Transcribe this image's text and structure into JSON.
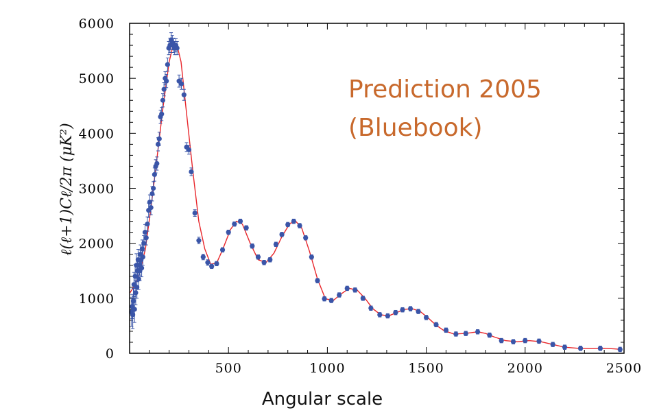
{
  "chart_data": {
    "type": "scatter",
    "title": "",
    "xlabel": "Angular scale",
    "ylabel": "ℓ(ℓ+1)Cℓ/2π (μK²)",
    "xlim": [
      0,
      2500
    ],
    "ylim": [
      0,
      6000
    ],
    "x_ticks": [
      500,
      1000,
      1500,
      2000,
      2500
    ],
    "y_ticks": [
      0,
      1000,
      2000,
      3000,
      4000,
      5000,
      6000
    ],
    "x_tick_labels": [
      "500",
      "1000",
      "1500",
      "2000",
      "2500"
    ],
    "y_tick_labels": [
      "0",
      "1000",
      "2000",
      "3000",
      "4000",
      "5000",
      "6000"
    ],
    "grid": false,
    "annotation_lines": [
      "Prediction 2005",
      "(Bluebook)"
    ],
    "colors": {
      "points": "#3a55a8",
      "curve": "#e8262b",
      "annotation": "#c8692c"
    },
    "series": [
      {
        "kind": "line",
        "points": [
          [
            2,
            1100
          ],
          [
            20,
            1200
          ],
          [
            50,
            1450
          ],
          [
            80,
            1900
          ],
          [
            110,
            2700
          ],
          [
            140,
            3600
          ],
          [
            170,
            4500
          ],
          [
            200,
            5300
          ],
          [
            220,
            5600
          ],
          [
            240,
            5600
          ],
          [
            260,
            5300
          ],
          [
            290,
            4300
          ],
          [
            320,
            3300
          ],
          [
            350,
            2400
          ],
          [
            380,
            1900
          ],
          [
            410,
            1620
          ],
          [
            440,
            1640
          ],
          [
            470,
            1880
          ],
          [
            510,
            2250
          ],
          [
            540,
            2400
          ],
          [
            570,
            2350
          ],
          [
            610,
            2000
          ],
          [
            650,
            1700
          ],
          [
            690,
            1650
          ],
          [
            730,
            1820
          ],
          [
            770,
            2120
          ],
          [
            810,
            2360
          ],
          [
            840,
            2400
          ],
          [
            870,
            2280
          ],
          [
            910,
            1850
          ],
          [
            950,
            1350
          ],
          [
            990,
            990
          ],
          [
            1030,
            960
          ],
          [
            1070,
            1080
          ],
          [
            1110,
            1180
          ],
          [
            1150,
            1150
          ],
          [
            1190,
            1000
          ],
          [
            1230,
            810
          ],
          [
            1270,
            700
          ],
          [
            1310,
            680
          ],
          [
            1350,
            740
          ],
          [
            1390,
            800
          ],
          [
            1430,
            810
          ],
          [
            1470,
            760
          ],
          [
            1510,
            640
          ],
          [
            1550,
            510
          ],
          [
            1590,
            410
          ],
          [
            1640,
            350
          ],
          [
            1700,
            360
          ],
          [
            1760,
            390
          ],
          [
            1800,
            360
          ],
          [
            1840,
            300
          ],
          [
            1900,
            230
          ],
          [
            1960,
            210
          ],
          [
            2020,
            230
          ],
          [
            2080,
            210
          ],
          [
            2140,
            160
          ],
          [
            2200,
            110
          ],
          [
            2270,
            90
          ],
          [
            2340,
            85
          ],
          [
            2400,
            90
          ],
          [
            2450,
            80
          ],
          [
            2490,
            70
          ]
        ]
      },
      {
        "kind": "points",
        "points": [
          [
            10,
            750,
            260
          ],
          [
            13,
            850,
            220
          ],
          [
            16,
            700,
            250
          ],
          [
            19,
            950,
            230
          ],
          [
            22,
            1250,
            220
          ],
          [
            25,
            800,
            240
          ],
          [
            28,
            1400,
            210
          ],
          [
            31,
            1100,
            220
          ],
          [
            34,
            1600,
            210
          ],
          [
            37,
            1200,
            200
          ],
          [
            40,
            1500,
            200
          ],
          [
            43,
            1700,
            190
          ],
          [
            46,
            1350,
            190
          ],
          [
            49,
            1600,
            180
          ],
          [
            52,
            1500,
            180
          ],
          [
            55,
            1800,
            170
          ],
          [
            58,
            1700,
            170
          ],
          [
            61,
            1550,
            160
          ],
          [
            64,
            1900,
            160
          ],
          [
            67,
            1750,
            150
          ],
          [
            72,
            2000,
            140
          ],
          [
            78,
            2200,
            140
          ],
          [
            84,
            2100,
            130
          ],
          [
            90,
            2350,
            130
          ],
          [
            96,
            2600,
            130
          ],
          [
            102,
            2750,
            130
          ],
          [
            108,
            2650,
            130
          ],
          [
            114,
            2900,
            130
          ],
          [
            120,
            3000,
            120
          ],
          [
            126,
            3250,
            120
          ],
          [
            132,
            3400,
            120
          ],
          [
            138,
            3450,
            120
          ],
          [
            144,
            3800,
            120
          ],
          [
            150,
            3900,
            120
          ],
          [
            156,
            4300,
            120
          ],
          [
            162,
            4350,
            120
          ],
          [
            168,
            4600,
            120
          ],
          [
            174,
            4800,
            120
          ],
          [
            180,
            5000,
            120
          ],
          [
            186,
            4950,
            120
          ],
          [
            192,
            5250,
            120
          ],
          [
            198,
            5550,
            120
          ],
          [
            204,
            5600,
            130
          ],
          [
            210,
            5700,
            130
          ],
          [
            216,
            5650,
            130
          ],
          [
            222,
            5600,
            130
          ],
          [
            228,
            5550,
            120
          ],
          [
            234,
            5600,
            120
          ],
          [
            240,
            5550,
            120
          ],
          [
            250,
            4950,
            110
          ],
          [
            262,
            4900,
            100
          ],
          [
            275,
            4700,
            100
          ],
          [
            288,
            3750,
            80
          ],
          [
            300,
            3700,
            80
          ],
          [
            312,
            3300,
            70
          ],
          [
            330,
            2550,
            60
          ],
          [
            350,
            2050,
            60
          ],
          [
            372,
            1750,
            50
          ],
          [
            395,
            1650,
            50
          ],
          [
            415,
            1580,
            40
          ],
          [
            440,
            1630,
            40
          ],
          [
            470,
            1880,
            40
          ],
          [
            500,
            2200,
            40
          ],
          [
            530,
            2350,
            40
          ],
          [
            560,
            2400,
            40
          ],
          [
            590,
            2280,
            40
          ],
          [
            620,
            1950,
            40
          ],
          [
            650,
            1750,
            40
          ],
          [
            680,
            1650,
            40
          ],
          [
            710,
            1700,
            40
          ],
          [
            740,
            1980,
            40
          ],
          [
            770,
            2160,
            40
          ],
          [
            800,
            2340,
            40
          ],
          [
            830,
            2400,
            40
          ],
          [
            860,
            2320,
            40
          ],
          [
            890,
            2100,
            40
          ],
          [
            920,
            1750,
            40
          ],
          [
            950,
            1320,
            40
          ],
          [
            985,
            990,
            40
          ],
          [
            1020,
            960,
            40
          ],
          [
            1060,
            1060,
            40
          ],
          [
            1100,
            1180,
            40
          ],
          [
            1140,
            1150,
            40
          ],
          [
            1180,
            1000,
            40
          ],
          [
            1220,
            820,
            40
          ],
          [
            1265,
            700,
            40
          ],
          [
            1305,
            680,
            40
          ],
          [
            1345,
            740,
            40
          ],
          [
            1380,
            790,
            40
          ],
          [
            1420,
            810,
            40
          ],
          [
            1460,
            760,
            40
          ],
          [
            1500,
            650,
            40
          ],
          [
            1550,
            520,
            40
          ],
          [
            1600,
            420,
            40
          ],
          [
            1650,
            350,
            40
          ],
          [
            1700,
            360,
            40
          ],
          [
            1760,
            390,
            40
          ],
          [
            1820,
            330,
            40
          ],
          [
            1880,
            230,
            40
          ],
          [
            1940,
            210,
            40
          ],
          [
            2000,
            230,
            40
          ],
          [
            2070,
            220,
            40
          ],
          [
            2140,
            160,
            40
          ],
          [
            2200,
            110,
            40
          ],
          [
            2280,
            90,
            40
          ],
          [
            2380,
            90,
            40
          ],
          [
            2480,
            70,
            40
          ]
        ]
      }
    ]
  }
}
